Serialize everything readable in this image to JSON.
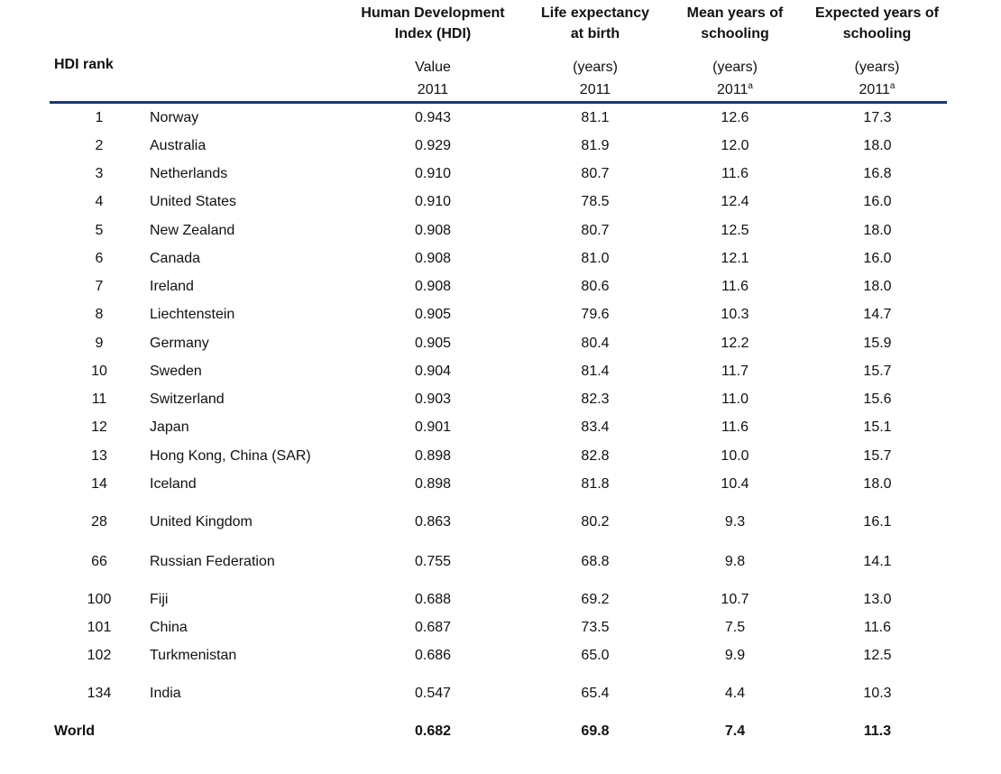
{
  "header": {
    "rank_label": "HDI rank",
    "hdi": {
      "line1": "Human Development",
      "line2": "Index (HDI)",
      "unit": "Value",
      "year": "2011"
    },
    "life": {
      "line1": "Life expectancy",
      "line2": "at birth",
      "unit": "(years)",
      "year": "2011"
    },
    "mean": {
      "line1": "Mean years of",
      "line2": "schooling",
      "unit": "(years)",
      "year": "2011",
      "note": "a"
    },
    "expected": {
      "line1": "Expected years of",
      "line2": "schooling",
      "unit": "(years)",
      "year": "2011",
      "note": "a"
    }
  },
  "rows": [
    {
      "rank": "1",
      "country": "Norway",
      "hdi": "0.943",
      "life": "81.1",
      "mean": "12.6",
      "expected": "17.3"
    },
    {
      "rank": "2",
      "country": "Australia",
      "hdi": "0.929",
      "life": "81.9",
      "mean": "12.0",
      "expected": "18.0"
    },
    {
      "rank": "3",
      "country": "Netherlands",
      "hdi": "0.910",
      "life": "80.7",
      "mean": "11.6",
      "expected": "16.8"
    },
    {
      "rank": "4",
      "country": "United States",
      "hdi": "0.910",
      "life": "78.5",
      "mean": "12.4",
      "expected": "16.0"
    },
    {
      "rank": "5",
      "country": "New Zealand",
      "hdi": "0.908",
      "life": "80.7",
      "mean": "12.5",
      "expected": "18.0"
    },
    {
      "rank": "6",
      "country": "Canada",
      "hdi": "0.908",
      "life": "81.0",
      "mean": "12.1",
      "expected": "16.0"
    },
    {
      "rank": "7",
      "country": "Ireland",
      "hdi": "0.908",
      "life": "80.6",
      "mean": "11.6",
      "expected": "18.0"
    },
    {
      "rank": "8",
      "country": "Liechtenstein",
      "hdi": "0.905",
      "life": "79.6",
      "mean": "10.3",
      "expected": "14.7"
    },
    {
      "rank": "9",
      "country": "Germany",
      "hdi": "0.905",
      "life": "80.4",
      "mean": "12.2",
      "expected": "15.9"
    },
    {
      "rank": "10",
      "country": "Sweden",
      "hdi": "0.904",
      "life": "81.4",
      "mean": "11.7",
      "expected": "15.7"
    },
    {
      "rank": "11",
      "country": "Switzerland",
      "hdi": "0.903",
      "life": "82.3",
      "mean": "11.0",
      "expected": "15.6"
    },
    {
      "rank": "12",
      "country": "Japan",
      "hdi": "0.901",
      "life": "83.4",
      "mean": "11.6",
      "expected": "15.1"
    },
    {
      "rank": "13",
      "country": "Hong Kong, China (SAR)",
      "hdi": "0.898",
      "life": "82.8",
      "mean": "10.0",
      "expected": "15.7"
    },
    {
      "rank": "14",
      "country": "Iceland",
      "hdi": "0.898",
      "life": "81.8",
      "mean": "10.4",
      "expected": "18.0"
    },
    {
      "rank": "28",
      "country": "United Kingdom",
      "hdi": "0.863",
      "life": "80.2",
      "mean": "9.3",
      "expected": "16.1"
    },
    {
      "rank": "66",
      "country": "Russian Federation",
      "hdi": "0.755",
      "life": "68.8",
      "mean": "9.8",
      "expected": "14.1"
    },
    {
      "rank": "100",
      "country": "Fiji",
      "hdi": "0.688",
      "life": "69.2",
      "mean": "10.7",
      "expected": "13.0"
    },
    {
      "rank": "101",
      "country": "China",
      "hdi": "0.687",
      "life": "73.5",
      "mean": "7.5",
      "expected": "11.6"
    },
    {
      "rank": "102",
      "country": "Turkmenistan",
      "hdi": "0.686",
      "life": "65.0",
      "mean": "9.9",
      "expected": "12.5"
    },
    {
      "rank": "134",
      "country": "India",
      "hdi": "0.547",
      "life": "65.4",
      "mean": "4.4",
      "expected": "10.3"
    }
  ],
  "world": {
    "label": "World",
    "hdi": "0.682",
    "life": "69.8",
    "mean": "7.4",
    "expected": "11.3"
  }
}
